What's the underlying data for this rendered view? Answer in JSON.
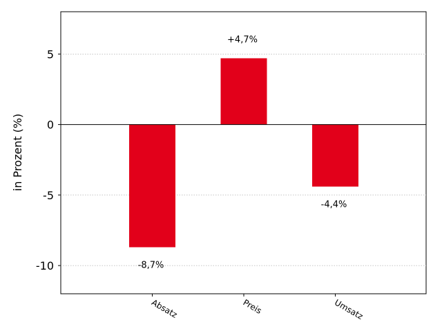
{
  "chart_data": {
    "type": "bar",
    "title": "",
    "xlabel": "",
    "ylabel": "in Prozent (%)",
    "categories": [
      "Absatz",
      "Preis",
      "Umsatz"
    ],
    "values": [
      -8.7,
      4.7,
      -4.4
    ],
    "data_labels": [
      "-8,7%",
      "+4,7%",
      "-4,4%"
    ],
    "ylim": [
      -12,
      8
    ],
    "y_ticks": [
      5,
      0,
      -5,
      -10
    ],
    "y_tick_labels": [
      "5",
      "0",
      "-5",
      "-10"
    ],
    "grid": "horizontal-dotted",
    "bar_color": "#e2001a"
  }
}
